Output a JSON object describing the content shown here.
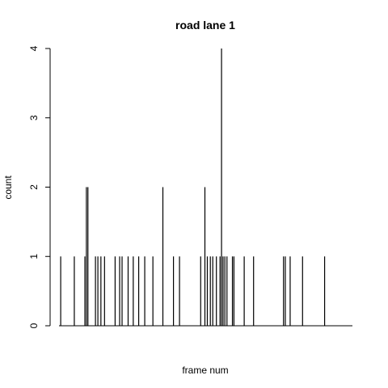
{
  "chart_data": {
    "type": "bar",
    "title": "road lane 1",
    "xlabel": "frame num",
    "ylabel": "count",
    "ylim": [
      0,
      4
    ],
    "yticks": [
      "0",
      "1",
      "2",
      "3",
      "4"
    ],
    "xlim": [
      0,
      100
    ],
    "grid": false,
    "series": [
      {
        "x": [
          3.5,
          8,
          11.5,
          12,
          12.5,
          15,
          15.8,
          16.8,
          18,
          21.5,
          23,
          23.8,
          25.8,
          27.5,
          29.3,
          31.3,
          34,
          37.3,
          40.8,
          42.8,
          49.8,
          51.2,
          52,
          53,
          53.8,
          55,
          56.2,
          56.7,
          57.2,
          57.8,
          58.5,
          60.3,
          60.8,
          64.2,
          67.3,
          77.2,
          77.8,
          79.4,
          83.5,
          90.8
        ],
        "values": [
          1,
          1,
          1,
          2,
          2,
          1,
          1,
          1,
          1,
          1,
          1,
          1,
          1,
          1,
          1,
          1,
          1,
          2,
          1,
          1,
          1,
          2,
          1,
          1,
          1,
          1,
          1,
          4,
          1,
          1,
          1,
          1,
          1,
          1,
          1,
          1,
          1,
          1,
          1,
          1
        ]
      }
    ]
  }
}
